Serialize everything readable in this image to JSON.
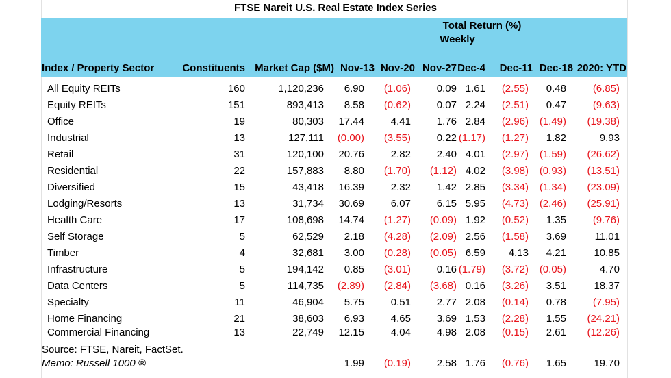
{
  "title": "FTSE Nareit U.S. Real Estate Index Series",
  "header": {
    "group_line1": "Total Return (%)",
    "group_line2": "Weekly",
    "columns": [
      "Index / Property Sector",
      "Constituents",
      "Market Cap ($M)",
      "Nov-13",
      "Nov-20",
      "Nov-27",
      "Dec-4",
      "Dec-11",
      "Dec-18",
      "2020: YTD"
    ]
  },
  "rows": [
    {
      "label": "All Equity REITs",
      "cells": [
        "160",
        "1,120,236",
        "6.90",
        "(1.06)",
        "0.09",
        "1.61",
        "(2.55)",
        "0.48",
        "(6.85)"
      ]
    },
    {
      "label": "Equity REITs",
      "cells": [
        "151",
        "893,413",
        "8.58",
        "(0.62)",
        "0.07",
        "2.24",
        "(2.51)",
        "0.47",
        "(9.63)"
      ]
    },
    {
      "label": "Office",
      "cells": [
        "19",
        "80,303",
        "17.44",
        "4.41",
        "1.76",
        "2.84",
        "(2.96)",
        "(1.49)",
        "(19.38)"
      ]
    },
    {
      "label": "Industrial",
      "cells": [
        "13",
        "127,111",
        "(0.00)",
        "(3.55)",
        "0.22",
        "(1.17)",
        "(1.27)",
        "1.82",
        "9.93"
      ]
    },
    {
      "label": "Retail",
      "cells": [
        "31",
        "120,100",
        "20.76",
        "2.82",
        "2.40",
        "4.01",
        "(2.97)",
        "(1.59)",
        "(26.62)"
      ]
    },
    {
      "label": "Residential",
      "cells": [
        "22",
        "157,883",
        "8.80",
        "(1.70)",
        "(1.12)",
        "4.02",
        "(3.98)",
        "(0.93)",
        "(13.51)"
      ]
    },
    {
      "label": "Diversified",
      "cells": [
        "15",
        "43,418",
        "16.39",
        "2.32",
        "1.42",
        "2.85",
        "(3.34)",
        "(1.34)",
        "(23.09)"
      ]
    },
    {
      "label": "Lodging/Resorts",
      "cells": [
        "13",
        "31,734",
        "30.69",
        "6.07",
        "6.15",
        "5.95",
        "(4.73)",
        "(2.46)",
        "(25.91)"
      ]
    },
    {
      "label": "Health Care",
      "cells": [
        "17",
        "108,698",
        "14.74",
        "(1.27)",
        "(0.09)",
        "1.92",
        "(0.52)",
        "1.35",
        "(9.76)"
      ]
    },
    {
      "label": "Self Storage",
      "cells": [
        "5",
        "62,529",
        "2.18",
        "(4.28)",
        "(2.09)",
        "2.56",
        "(1.58)",
        "3.69",
        "11.01"
      ]
    },
    {
      "label": "Timber",
      "cells": [
        "4",
        "32,681",
        "3.00",
        "(0.28)",
        "(0.05)",
        "6.59",
        "4.13",
        "4.21",
        "10.85"
      ]
    },
    {
      "label": "Infrastructure",
      "cells": [
        "5",
        "194,142",
        "0.85",
        "(3.01)",
        "0.16",
        "(1.79)",
        "(3.72)",
        "(0.05)",
        "4.70"
      ]
    },
    {
      "label": "Data Centers",
      "cells": [
        "5",
        "114,735",
        "(2.89)",
        "(2.84)",
        "(3.68)",
        "0.16",
        "(3.26)",
        "3.51",
        "18.37"
      ]
    },
    {
      "label": "Specialty",
      "cells": [
        "11",
        "46,904",
        "5.75",
        "0.51",
        "2.77",
        "2.08",
        "(0.14)",
        "0.78",
        "(7.95)"
      ]
    },
    {
      "label": "Home Financing",
      "cells": [
        "21",
        "38,603",
        "6.93",
        "4.65",
        "3.69",
        "1.53",
        "(2.28)",
        "1.55",
        "(24.21)"
      ]
    },
    {
      "label": "Commercial Financing",
      "cells": [
        "13",
        "22,749",
        "12.15",
        "4.04",
        "4.98",
        "2.08",
        "(0.15)",
        "2.61",
        "(12.26)"
      ]
    }
  ],
  "source": "Source: FTSE, Nareit, FactSet.",
  "memo": {
    "label": "Memo: Russell 1000 ®",
    "cells": [
      "",
      "",
      "1.99",
      "(0.19)",
      "2.58",
      "1.76",
      "(0.76)",
      "1.65",
      "19.70"
    ]
  },
  "colors": {
    "header_band": "#7dd3ee",
    "negative": "#e8141c"
  }
}
